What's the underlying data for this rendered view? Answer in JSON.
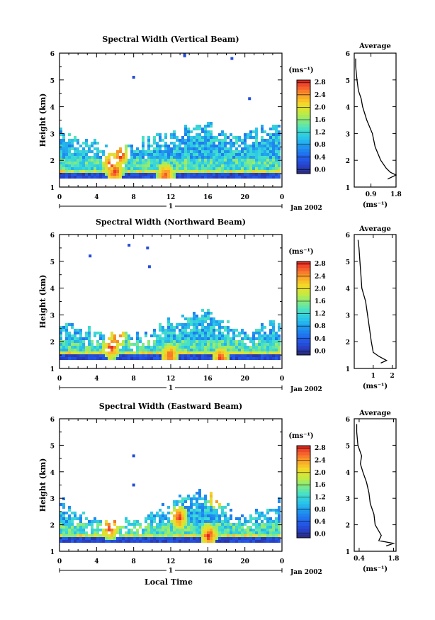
{
  "chart_data": [
    {
      "type": "heatmap",
      "title": "Spectral Width (Vertical Beam)",
      "ylabel": "Height (km)",
      "ylim": [
        1,
        6
      ],
      "yticks": [
        "1",
        "2",
        "3",
        "4",
        "5",
        "6"
      ],
      "xlim": [
        0,
        24
      ],
      "xticks": [
        "0",
        "4",
        "8",
        "12",
        "16",
        "20",
        "0"
      ],
      "day_marker": "1",
      "date_label": "Jan 2002",
      "colorbar": {
        "unit": "(ms⁻¹)",
        "ticks": [
          "0.0",
          "0.4",
          "0.8",
          "1.2",
          "1.6",
          "2.0",
          "2.4",
          "2.8"
        ],
        "range": [
          0,
          3.0
        ]
      },
      "averaged": {
        "title": "Average",
        "xlabel": "(ms⁻¹)",
        "xticks": [
          "0.9",
          "1.8"
        ],
        "xlim": [
          0.3,
          1.8
        ],
        "yticks": [
          "1",
          "2",
          "3",
          "4",
          "5",
          "6"
        ],
        "height": [
          1.3,
          1.45,
          1.55,
          1.7,
          2.0,
          2.5,
          3.0,
          3.5,
          4.0,
          4.3,
          4.6,
          5.0,
          5.5,
          5.8
        ],
        "values": [
          1.5,
          1.8,
          1.6,
          1.45,
          1.25,
          1.05,
          0.95,
          0.75,
          0.6,
          0.55,
          0.45,
          0.4,
          0.35,
          0.35
        ]
      }
    },
    {
      "type": "heatmap",
      "title": "Spectral Width (Northward Beam)",
      "ylabel": "Height (km)",
      "ylim": [
        1,
        6
      ],
      "yticks": [
        "1",
        "2",
        "3",
        "4",
        "5",
        "6"
      ],
      "xlim": [
        0,
        24
      ],
      "xticks": [
        "0",
        "4",
        "8",
        "12",
        "16",
        "20",
        "0"
      ],
      "day_marker": "1",
      "date_label": "Jan 2002",
      "colorbar": {
        "unit": "(ms⁻¹)",
        "ticks": [
          "0.0",
          "0.4",
          "0.8",
          "1.2",
          "1.6",
          "2.0",
          "2.4",
          "2.8"
        ],
        "range": [
          0,
          3.0
        ]
      },
      "averaged": {
        "title": "Average",
        "xlabel": "(ms⁻¹)",
        "xticks": [
          "1",
          "2"
        ],
        "xlim": [
          0,
          2.2
        ],
        "yticks": [
          "1",
          "2",
          "3",
          "4",
          "5",
          "6"
        ],
        "height": [
          1.2,
          1.3,
          1.45,
          1.6,
          2.0,
          2.5,
          3.0,
          3.5,
          4.0,
          4.5,
          5.0,
          5.5,
          5.8
        ],
        "values": [
          1.4,
          1.7,
          1.3,
          1.0,
          0.9,
          0.8,
          0.7,
          0.6,
          0.4,
          0.35,
          0.3,
          0.25,
          0.2
        ]
      }
    },
    {
      "type": "heatmap",
      "title": "Spectral Width (Eastward Beam)",
      "ylabel": "Height (km)",
      "xlabel": "Local Time",
      "ylim": [
        1,
        6
      ],
      "yticks": [
        "1",
        "2",
        "3",
        "4",
        "5",
        "6"
      ],
      "xlim": [
        0,
        24
      ],
      "xticks": [
        "0",
        "4",
        "8",
        "12",
        "16",
        "20",
        "0"
      ],
      "day_marker": "1",
      "date_label": "Jan 2002",
      "colorbar": {
        "unit": "(ms⁻¹)",
        "ticks": [
          "0.0",
          "0.4",
          "0.8",
          "1.2",
          "1.6",
          "2.0",
          "2.4",
          "2.8"
        ],
        "range": [
          0,
          3.0
        ]
      },
      "averaged": {
        "title": "Average",
        "xlabel": "(ms⁻¹)",
        "xticks": [
          "0.4",
          "1.8"
        ],
        "xlim": [
          0.2,
          1.9
        ],
        "yticks": [
          "1",
          "2",
          "3",
          "4",
          "5",
          "6"
        ],
        "height": [
          1.2,
          1.3,
          1.4,
          1.6,
          2.0,
          2.4,
          2.8,
          3.2,
          3.6,
          4.0,
          4.3,
          4.6,
          5.0,
          5.5,
          5.8
        ],
        "values": [
          1.5,
          1.8,
          1.2,
          1.3,
          1.05,
          1.0,
          0.85,
          0.8,
          0.7,
          0.55,
          0.45,
          0.5,
          0.35,
          0.3,
          0.3
        ]
      }
    }
  ]
}
